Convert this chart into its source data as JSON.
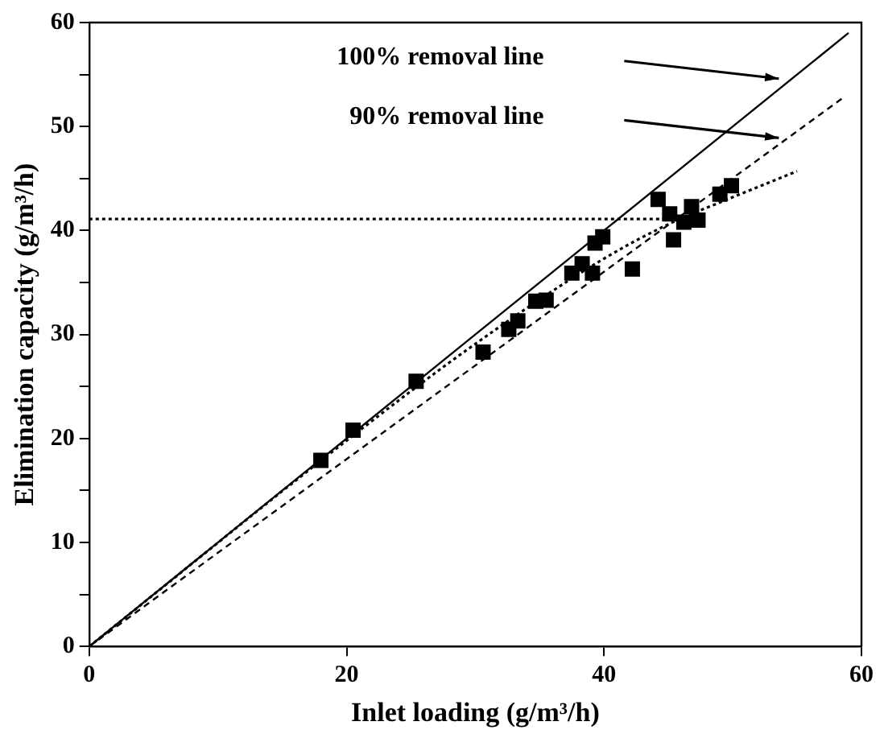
{
  "chart_data": {
    "type": "scatter",
    "xlabel": "Inlet loading (g/m³/h)",
    "ylabel": "Elimination capacity (g/m³/h)",
    "xlim": [
      0,
      60
    ],
    "ylim": [
      0,
      60
    ],
    "xticks": [
      0,
      20,
      40,
      60
    ],
    "yticks": [
      0,
      {
        "value": 5,
        "label": null
      },
      10,
      {
        "value": 15,
        "label": null
      },
      20,
      {
        "value": 25,
        "label": null
      },
      30,
      {
        "value": 35,
        "label": null
      },
      40,
      {
        "value": 45,
        "label": null
      },
      50,
      {
        "value": 55,
        "label": null
      },
      60
    ],
    "grid": false,
    "legend": false,
    "marker": "square",
    "series": [
      {
        "type": "line",
        "color": "#000000",
        "line_style": "solid",
        "marker": "none",
        "x": [
          0,
          59
        ],
        "values": [
          0,
          59
        ]
      },
      {
        "type": "line",
        "color": "#000000",
        "line_style": "dashed",
        "marker": "none",
        "x": [
          0,
          58.5
        ],
        "values": [
          0,
          52.7
        ]
      },
      {
        "type": "line",
        "color": "#000000",
        "line_style": "dotted",
        "marker": "none",
        "x": [
          0,
          20,
          30,
          40,
          45,
          50,
          55
        ],
        "values": [
          0,
          19.8,
          29.1,
          37.3,
          40.6,
          43.2,
          45.7
        ]
      },
      {
        "type": "line",
        "color": "#000000",
        "line_style": "dotted",
        "marker": "none",
        "x": [
          0,
          45.9
        ],
        "values": [
          41.1,
          41.1
        ]
      },
      {
        "color": "#000000",
        "x": [
          18,
          20.5,
          25.4,
          30.6,
          32.6,
          33.3,
          34.7,
          35.5,
          37.5,
          38.3,
          39.1,
          39.3,
          39.9,
          42.2,
          44.2,
          45.1,
          45.4,
          46.2,
          46.8,
          47.3,
          49.0,
          49.9
        ],
        "values": [
          17.9,
          20.8,
          25.5,
          28.3,
          30.5,
          31.3,
          33.2,
          33.3,
          35.9,
          36.8,
          35.9,
          38.8,
          39.4,
          36.3,
          43.0,
          41.6,
          39.1,
          40.8,
          42.3,
          41.0,
          43.5,
          44.3
        ]
      }
    ],
    "annotations": [
      "100% removal line",
      "90% removal line"
    ]
  }
}
